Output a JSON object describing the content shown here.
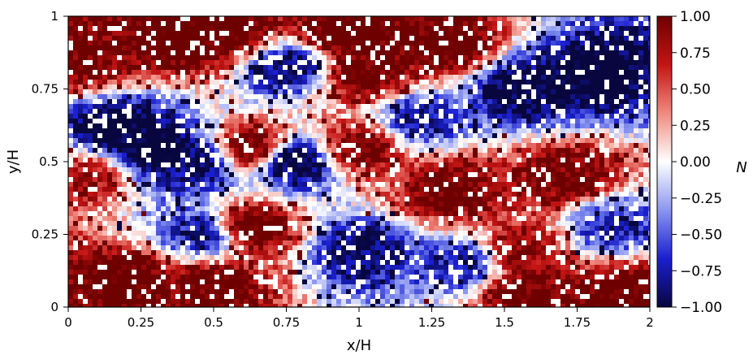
{
  "chart_data": {
    "type": "heatmap",
    "title": "",
    "xlabel": "x/H",
    "ylabel": "y/H",
    "xlim": [
      0,
      2
    ],
    "ylim": [
      0,
      1
    ],
    "x_ticks": [
      "0",
      "0.25",
      "0.5",
      "0.75",
      "1",
      "1.25",
      "1.5",
      "1.75",
      "2"
    ],
    "y_ticks": [
      "0",
      "0.25",
      "0.5",
      "0.75",
      "1"
    ],
    "colorbar": {
      "label": "N",
      "range": [
        -1,
        1
      ],
      "ticks": [
        "1.00",
        "0.75",
        "0.50",
        "0.25",
        "0.00",
        "−0.25",
        "−0.50",
        "−0.75",
        "−1.00"
      ],
      "colormap": "seismic",
      "stops": [
        "#08063e",
        "#1a1fd0",
        "#8a96f0",
        "#ffffff",
        "#f08a7f",
        "#c41414",
        "#6e0000"
      ]
    },
    "field_regions": [
      {
        "x": 0.16,
        "y": 0.62,
        "value": -0.85
      },
      {
        "x": 0.3,
        "y": 0.55,
        "value": -0.9
      },
      {
        "x": 0.45,
        "y": 0.5,
        "value": -0.75
      },
      {
        "x": 0.45,
        "y": 0.25,
        "value": -0.6
      },
      {
        "x": 0.62,
        "y": 0.55,
        "value": 0.8
      },
      {
        "x": 0.63,
        "y": 0.28,
        "value": 0.85
      },
      {
        "x": 0.78,
        "y": 0.5,
        "value": -0.85
      },
      {
        "x": 0.75,
        "y": 0.82,
        "value": -0.7
      },
      {
        "x": 0.05,
        "y": 0.85,
        "value": 0.75
      },
      {
        "x": 0.06,
        "y": 0.45,
        "value": 0.6
      },
      {
        "x": 0.2,
        "y": 0.1,
        "value": 0.85
      },
      {
        "x": 0.5,
        "y": 0.08,
        "value": 0.8
      },
      {
        "x": 1.0,
        "y": 0.2,
        "value": -0.7
      },
      {
        "x": 1.0,
        "y": 0.55,
        "value": 0.75
      },
      {
        "x": 1.02,
        "y": 0.8,
        "value": 0.8
      },
      {
        "x": 0.95,
        "y": 0.95,
        "value": 0.9
      },
      {
        "x": 1.2,
        "y": 0.65,
        "value": -0.6
      },
      {
        "x": 1.3,
        "y": 0.9,
        "value": 0.85
      },
      {
        "x": 1.3,
        "y": 0.4,
        "value": 0.8
      },
      {
        "x": 1.35,
        "y": 0.15,
        "value": -0.6
      },
      {
        "x": 1.55,
        "y": 0.75,
        "value": -0.8
      },
      {
        "x": 1.55,
        "y": 0.2,
        "value": 0.7
      },
      {
        "x": 1.7,
        "y": 0.45,
        "value": 0.75
      },
      {
        "x": 1.8,
        "y": 0.8,
        "value": -0.85
      },
      {
        "x": 1.85,
        "y": 0.28,
        "value": -0.55
      },
      {
        "x": 1.9,
        "y": 0.05,
        "value": 0.85
      },
      {
        "x": 1.55,
        "y": 0.05,
        "value": 0.8
      },
      {
        "x": 0.38,
        "y": 0.92,
        "value": 0.9
      },
      {
        "x": 0.55,
        "y": 0.95,
        "value": 0.85
      }
    ]
  }
}
